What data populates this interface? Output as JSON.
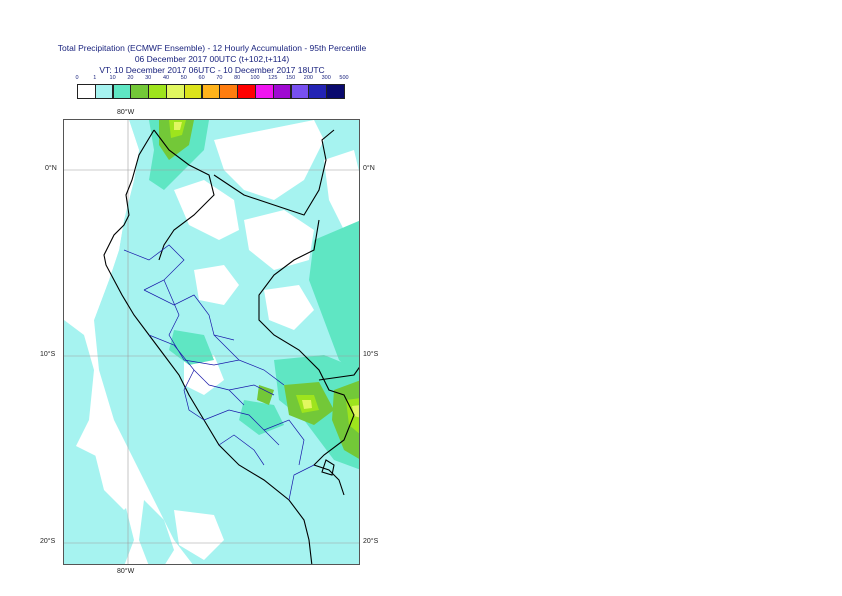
{
  "title": {
    "line1": "Total Precipitation (ECMWF Ensemble) - 12 Hourly Accumulation - 95th Percentile",
    "line2": "06 December 2017 00UTC (t+102,t+114)",
    "line3": "VT: 10 December 2017 06UTC - 10 December 2017 18UTC"
  },
  "legend": {
    "thresholds": [
      "0",
      "1",
      "10",
      "20",
      "30",
      "40",
      "50",
      "60",
      "70",
      "80",
      "100",
      "125",
      "150",
      "200",
      "300",
      "500"
    ],
    "colors": [
      "#ffffff",
      "#a6f3f0",
      "#5fe6c3",
      "#73c838",
      "#9ee41d",
      "#e1f760",
      "#dce31b",
      "#ffb31b",
      "#ff7d0f",
      "#ff0000",
      "#f014f0",
      "#a00ad2",
      "#7850f0",
      "#2323b4",
      "#0a0a6e"
    ]
  },
  "axes": {
    "lon_top": "80°W",
    "lon_bottom": "80°W",
    "lat_left": [
      "0°N",
      "10°S",
      "20°S"
    ],
    "lat_right": [
      "0°N",
      "10°S",
      "20°S"
    ]
  },
  "map": {
    "boundary_color": "#000000",
    "admin_color": "#1a1aaa",
    "grid_color": "#9e9e9e"
  }
}
